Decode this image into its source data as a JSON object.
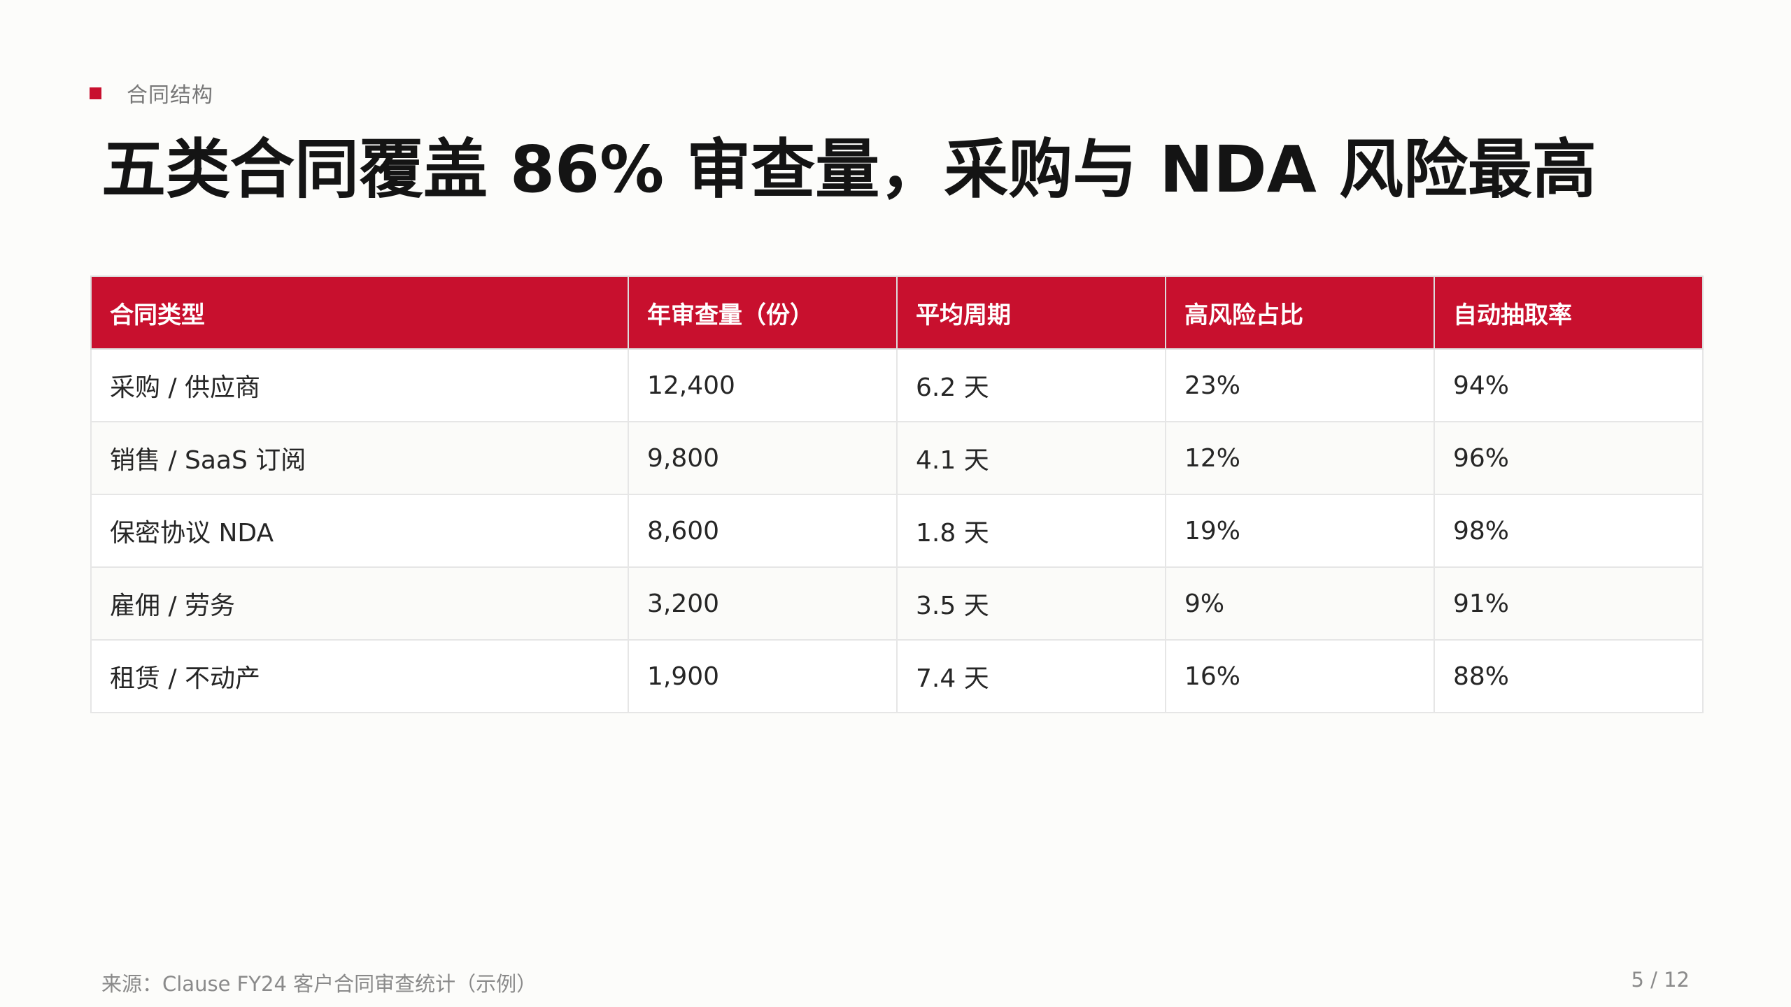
{
  "eyebrow": "合同结构",
  "title": "五类合同覆盖 86% 审查量，采购与 NDA 风险最高",
  "table": {
    "headers": [
      "合同类型",
      "年审查量（份）",
      "平均周期",
      "高风险占比",
      "自动抽取率"
    ],
    "rows": [
      [
        "采购 / 供应商",
        "12,400",
        "6.2 天",
        "23%",
        "94%"
      ],
      [
        "销售 / SaaS 订阅",
        "9,800",
        "4.1 天",
        "12%",
        "96%"
      ],
      [
        "保密协议 NDA",
        "8,600",
        "1.8 天",
        "19%",
        "98%"
      ],
      [
        "雇佣 / 劳务",
        "3,200",
        "3.5 天",
        "9%",
        "91%"
      ],
      [
        "租赁 / 不动产",
        "1,900",
        "7.4 天",
        "16%",
        "88%"
      ]
    ]
  },
  "footer": {
    "source": "来源：Clause FY24 客户合同审查统计（示例）",
    "page": "5 / 12"
  },
  "colors": {
    "accent": "#c8102e"
  }
}
